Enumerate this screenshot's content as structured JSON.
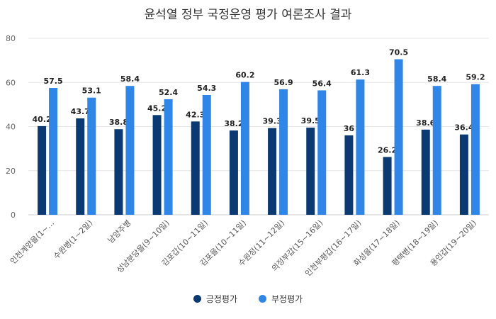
{
  "chart_data": {
    "type": "bar",
    "title": "윤석열 정부 국정운영 평가 여론조사 결과",
    "xlabel": "",
    "ylabel": "",
    "ylim": [
      0,
      80
    ],
    "yticks": [
      0,
      20,
      40,
      60,
      80
    ],
    "grid": true,
    "legend_position": "bottom",
    "categories": [
      "인천계양을(1~…",
      "수원병(1~2일)",
      "남양주병",
      "성남분당을(9~10일)",
      "김포갑(10~11일)",
      "김포을(10~11일)",
      "수원정(11~12일)",
      "의정부갑(15~16일)",
      "인천부평갑(16~17일)",
      "화성을(17~18일)",
      "평택병(18~19일)",
      "용인갑(19~20일)"
    ],
    "series": [
      {
        "name": "긍정평가",
        "color": "#0b3a73",
        "values": [
          40.2,
          43.7,
          38.8,
          45.2,
          42.3,
          38.2,
          39.3,
          39.5,
          36,
          26.2,
          38.6,
          36.4
        ]
      },
      {
        "name": "부정평가",
        "color": "#2f86e6",
        "values": [
          57.5,
          53.1,
          58.4,
          52.4,
          54.3,
          60.2,
          56.9,
          56.4,
          61.3,
          70.5,
          58.4,
          59.2
        ]
      }
    ]
  }
}
